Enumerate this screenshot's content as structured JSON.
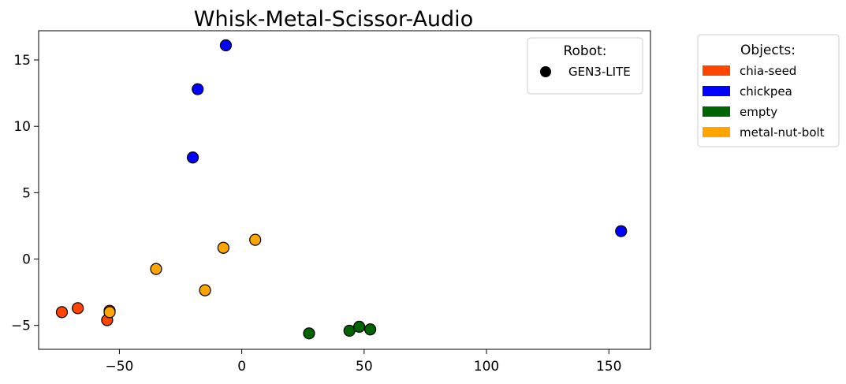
{
  "chart_data": {
    "type": "scatter",
    "title": "Whisk-Metal-Scissor-Audio",
    "xlabel": "",
    "ylabel": "",
    "xlim": [
      -83,
      167
    ],
    "ylim": [
      -6.8,
      17.2
    ],
    "x_ticks": [
      -50,
      0,
      50,
      100,
      150
    ],
    "x_tick_labels": [
      "−50",
      "0",
      "50",
      "100",
      "150"
    ],
    "y_ticks": [
      -5,
      0,
      5,
      10,
      15
    ],
    "y_tick_labels": [
      "−5",
      "0",
      "5",
      "10",
      "15"
    ],
    "grid": false,
    "marker": "circle",
    "robot_legend": {
      "title": "Robot:",
      "placement": "upper-right-inside",
      "entries": [
        {
          "label": "GEN3-LITE",
          "color": "#000000",
          "marker": "circle"
        }
      ]
    },
    "objects_legend": {
      "title": "Objects:",
      "placement": "outside-right",
      "entries": [
        {
          "label": "chia-seed",
          "color": "#FF4500"
        },
        {
          "label": "chickpea",
          "color": "#0000FF"
        },
        {
          "label": "empty",
          "color": "#006400"
        },
        {
          "label": "metal-nut-bolt",
          "color": "#FFA500"
        }
      ]
    },
    "series": [
      {
        "name": "chia-seed",
        "color": "#FF4500",
        "points": [
          {
            "x": -73.5,
            "y": -4.0
          },
          {
            "x": -67.0,
            "y": -3.7
          },
          {
            "x": -55.0,
            "y": -4.6
          },
          {
            "x": -54.0,
            "y": -3.9
          }
        ]
      },
      {
        "name": "chickpea",
        "color": "#0000FF",
        "points": [
          {
            "x": -6.5,
            "y": 16.1
          },
          {
            "x": -18.0,
            "y": 12.8
          },
          {
            "x": -20.0,
            "y": 7.65
          },
          {
            "x": 155.0,
            "y": 2.1
          }
        ]
      },
      {
        "name": "empty",
        "color": "#006400",
        "points": [
          {
            "x": 27.5,
            "y": -5.6
          },
          {
            "x": 44.0,
            "y": -5.4
          },
          {
            "x": 48.0,
            "y": -5.1
          },
          {
            "x": 52.5,
            "y": -5.3
          }
        ]
      },
      {
        "name": "metal-nut-bolt",
        "color": "#FFA500",
        "points": [
          {
            "x": -54.0,
            "y": -4.0
          },
          {
            "x": -35.0,
            "y": -0.75
          },
          {
            "x": -15.0,
            "y": -2.35
          },
          {
            "x": -7.5,
            "y": 0.85
          },
          {
            "x": 5.5,
            "y": 1.45
          }
        ]
      }
    ]
  }
}
